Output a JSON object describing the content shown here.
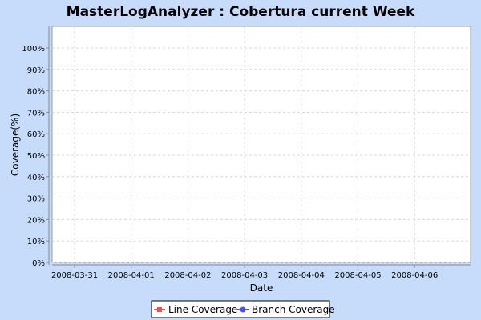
{
  "chart_data": {
    "type": "line",
    "title": "MasterLogAnalyzer : Cobertura current Week",
    "xlabel": "Date",
    "ylabel": "Coverage(%)",
    "x_ticks": [
      "2008-03-31",
      "2008-04-01",
      "2008-04-02",
      "2008-04-03",
      "2008-04-04",
      "2008-04-05",
      "2008-04-06"
    ],
    "y_ticks": [
      "0%",
      "10%",
      "20%",
      "30%",
      "40%",
      "50%",
      "60%",
      "70%",
      "80%",
      "90%",
      "100%"
    ],
    "ylim": [
      0,
      100
    ],
    "grid": true,
    "legend_position": "bottom",
    "series": [
      {
        "name": "Line Coverage",
        "color": "#f05050",
        "marker": "square",
        "values": []
      },
      {
        "name": "Branch Coverage",
        "color": "#5050f0",
        "marker": "circle",
        "values": []
      }
    ]
  }
}
